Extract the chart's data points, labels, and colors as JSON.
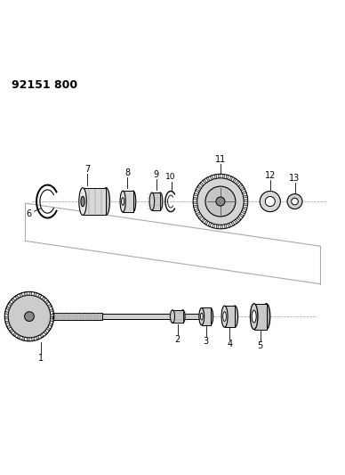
{
  "title": "92151 800",
  "background_color": "#ffffff",
  "line_color": "#000000",
  "figsize": [
    3.88,
    5.33
  ],
  "dpi": 100
}
